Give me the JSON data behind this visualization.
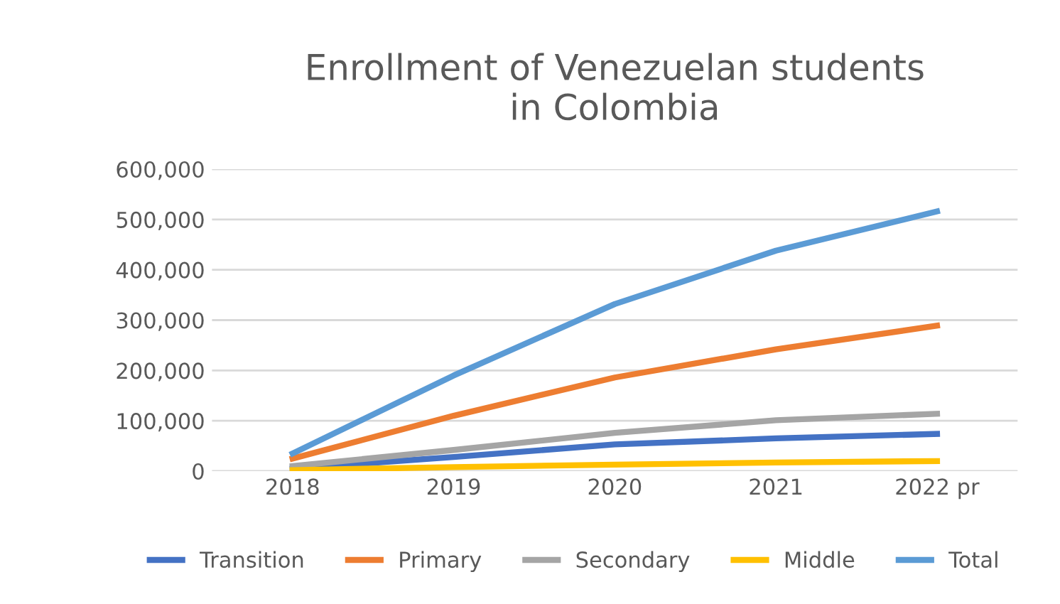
{
  "chart_data": {
    "type": "line",
    "title": "Enrollment of Venezuelan students\nin Colombia",
    "categories": [
      "2018",
      "2019",
      "2020",
      "2021",
      "2022 pr"
    ],
    "series": [
      {
        "name": "Transition",
        "color": "#4472c4",
        "values": [
          5000,
          28000,
          53000,
          65000,
          74000
        ]
      },
      {
        "name": "Primary",
        "color": "#ed7d31",
        "values": [
          25000,
          110000,
          186000,
          242000,
          289000
        ]
      },
      {
        "name": "Secondary",
        "color": "#a5a5a5",
        "values": [
          10000,
          42000,
          76000,
          101000,
          114000
        ]
      },
      {
        "name": "Middle",
        "color": "#ffc000",
        "values": [
          2000,
          8000,
          13000,
          17000,
          20000
        ]
      },
      {
        "name": "Total",
        "color": "#5b9bd5",
        "values": [
          35000,
          190000,
          332000,
          438000,
          516000
        ]
      }
    ],
    "ylim": [
      0,
      600000
    ],
    "yticks": [
      {
        "value": 0,
        "label": "0"
      },
      {
        "value": 100000,
        "label": "100,000"
      },
      {
        "value": 200000,
        "label": "200,000"
      },
      {
        "value": 300000,
        "label": "300,000"
      },
      {
        "value": 400000,
        "label": "400,000"
      },
      {
        "value": 500000,
        "label": "500,000"
      },
      {
        "value": 600000,
        "label": "600,000"
      }
    ],
    "grid": "y",
    "legend": "bottom",
    "marker": "none",
    "line_style": "solid"
  }
}
